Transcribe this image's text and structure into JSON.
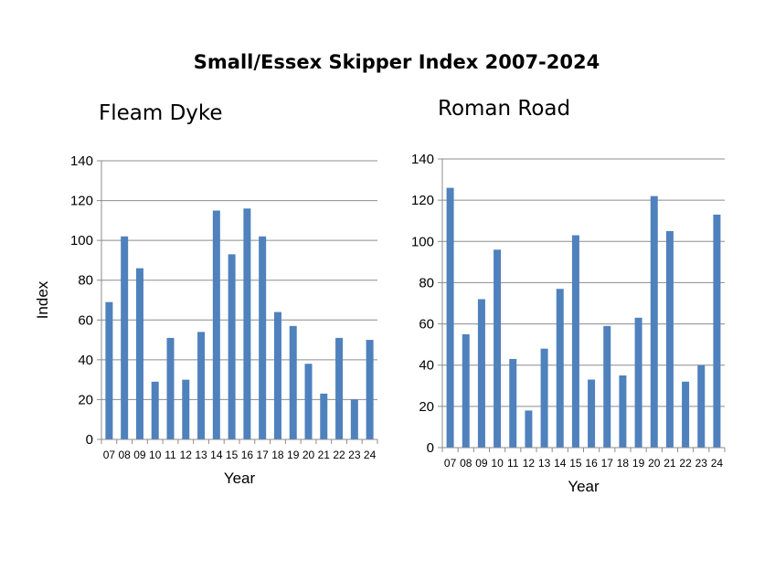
{
  "title": "Small/Essex Skipper Index 2007-2024",
  "chart_data": [
    {
      "type": "bar",
      "title": "Fleam Dyke",
      "xlabel": "Year",
      "ylabel": "Index",
      "ylim": [
        0,
        140
      ],
      "yticks": [
        "0",
        "20",
        "40",
        "60",
        "80",
        "100",
        "120",
        "140"
      ],
      "grid": true,
      "color": "#4f81bd",
      "categories": [
        "07",
        "08",
        "09",
        "10",
        "11",
        "12",
        "13",
        "14",
        "15",
        "16",
        "17",
        "18",
        "19",
        "20",
        "21",
        "22",
        "23",
        "24"
      ],
      "values": [
        69,
        102,
        86,
        29,
        51,
        30,
        54,
        115,
        93,
        116,
        102,
        64,
        57,
        38,
        23,
        51,
        20,
        50
      ]
    },
    {
      "type": "bar",
      "title": "Roman Road",
      "xlabel": "Year",
      "ylabel": "",
      "ylim": [
        0,
        140
      ],
      "yticks": [
        "0",
        "20",
        "40",
        "60",
        "80",
        "100",
        "120",
        "140"
      ],
      "grid": true,
      "color": "#4f81bd",
      "categories": [
        "07",
        "08",
        "09",
        "10",
        "11",
        "12",
        "13",
        "14",
        "15",
        "16",
        "17",
        "18",
        "19",
        "20",
        "21",
        "22",
        "23",
        "24"
      ],
      "values": [
        126,
        55,
        72,
        96,
        43,
        18,
        48,
        77,
        103,
        33,
        59,
        35,
        63,
        122,
        105,
        32,
        40,
        113
      ]
    }
  ]
}
